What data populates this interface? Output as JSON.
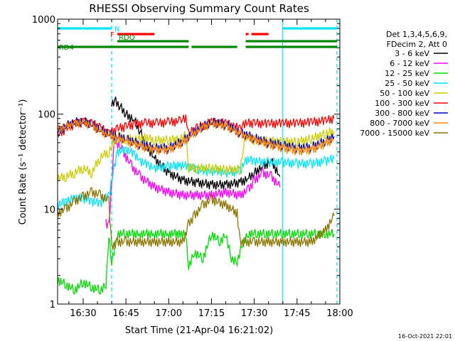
{
  "chart_data": {
    "type": "line",
    "title": "RHESSI Observing Summary Count Rates",
    "xlabel": "Start Time (21-Apr-04 16:21:02)",
    "ylabel": "Count Rate (s⁻¹ detector⁻¹)",
    "xlim": [
      "16:21:02",
      "18:00"
    ],
    "ylim": [
      1,
      1000
    ],
    "yscale": "log",
    "x_ticks": [
      "16:30",
      "16:45",
      "17:00",
      "17:15",
      "17:30",
      "17:45",
      "18:00"
    ],
    "y_ticks": [
      "1",
      "10",
      "100",
      "1000"
    ],
    "legend_header": [
      "Det 1,3,4,5,6,9,",
      "FDecim 2, Att 0"
    ],
    "legend_position": "right",
    "footer_date": "16-Oct-2021 22:01",
    "flags": [
      {
        "label": "N",
        "color": "#00e5ff",
        "segments": [
          [
            "16:21",
            "16:40"
          ],
          [
            "17:40",
            "17:59"
          ]
        ]
      },
      {
        "label": "F",
        "color": "#ff0000",
        "segments": [
          [
            "16:42",
            "16:55"
          ],
          [
            "17:27",
            "17:28"
          ],
          [
            "17:29",
            "17:35"
          ]
        ]
      },
      {
        "label": "RDO",
        "color": "#008800",
        "segments": [
          [
            "16:42",
            "17:07"
          ],
          [
            "17:27",
            "17:59"
          ]
        ]
      },
      {
        "label": "RD4",
        "color": "#008800",
        "segments": [
          [
            "16:21",
            "17:07"
          ],
          [
            "17:08",
            "17:24"
          ],
          [
            "17:27",
            "17:59"
          ]
        ]
      }
    ],
    "vlines": [
      {
        "t": "16:40",
        "color": "#00e5ff",
        "style": "dashed"
      },
      {
        "t": "17:40",
        "color": "#00e5ff",
        "style": "solid"
      },
      {
        "t": "17:59",
        "color": "#00e5ff",
        "style": "dashed"
      }
    ],
    "series": [
      {
        "name": "3 - 6 keV",
        "color": "#000000",
        "t": [
          "16:40",
          "16:41",
          "16:43",
          "16:45",
          "16:48",
          "16:50",
          "16:52",
          "16:55",
          "17:00",
          "17:05",
          "17:10",
          "17:15",
          "17:20",
          "17:25",
          "17:28",
          "17:30",
          "17:33",
          "17:36",
          "17:39"
        ],
        "values": [
          120,
          140,
          120,
          100,
          85,
          65,
          48,
          34,
          24,
          20,
          19,
          18,
          18,
          19,
          21,
          24,
          28,
          32,
          22
        ]
      },
      {
        "name": "6 - 12 keV",
        "color": "#ff00ff",
        "t": [
          "16:38",
          "16:39",
          "16:41",
          "16:44",
          "16:47",
          "16:50",
          "16:55",
          "17:00",
          "17:05",
          "17:10",
          "17:15",
          "17:20",
          "17:25",
          "17:28",
          "17:30",
          "17:33",
          "17:36",
          "17:39"
        ],
        "values": [
          7,
          6.5,
          55,
          40,
          28,
          22,
          17,
          15,
          14,
          14,
          14,
          15,
          14,
          16,
          20,
          24,
          22,
          17
        ]
      },
      {
        "name": "12 - 25 keV",
        "color": "#00dd00",
        "t": [
          "16:21",
          "16:24",
          "16:27",
          "16:30",
          "16:33",
          "16:36",
          "16:38",
          "16:39",
          "16:40",
          "16:42",
          "16:45",
          "16:50",
          "16:55",
          "17:00",
          "17:04",
          "17:06",
          "17:07",
          "17:09",
          "17:12",
          "17:15",
          "17:18",
          "17:20",
          "17:22",
          "17:24",
          "17:26",
          "17:28",
          "17:31",
          "17:34",
          "17:37",
          "17:40",
          "17:43",
          "17:46",
          "17:49",
          "17:52",
          "17:55",
          "17:58"
        ],
        "values": [
          1.8,
          1.6,
          1.4,
          1.7,
          1.5,
          1.4,
          1.6,
          5.5,
          2.8,
          5.5,
          5.5,
          5.5,
          5.5,
          5.5,
          5.5,
          5.5,
          2.5,
          3.5,
          3,
          5.5,
          4.5,
          5.5,
          3,
          2.8,
          4.5,
          5.5,
          5.5,
          5.5,
          5.5,
          5.5,
          5.5,
          5.5,
          5.5,
          5.5,
          5.5,
          5.5
        ]
      },
      {
        "name": "25 - 50 keV",
        "color": "#00e5ff",
        "t": [
          "16:21",
          "16:24",
          "16:27",
          "16:30",
          "16:33",
          "16:36",
          "16:39",
          "16:42",
          "16:45",
          "16:48",
          "16:50",
          "16:53",
          "16:55",
          "17:00",
          "17:04",
          "17:07",
          "17:10",
          "17:13",
          "17:15",
          "17:18",
          "17:20",
          "17:25",
          "17:27",
          "17:30",
          "17:35",
          "17:40",
          "17:45",
          "17:50",
          "17:55",
          "17:58"
        ],
        "values": [
          11,
          12,
          13,
          13,
          12,
          11.5,
          14,
          40,
          42,
          38,
          32,
          29,
          27,
          28,
          29,
          28,
          26,
          25,
          25,
          25,
          24,
          25,
          33,
          32,
          31,
          31,
          30,
          30,
          32,
          34
        ]
      },
      {
        "name": "50 - 100 keV",
        "color": "#cccc00",
        "t": [
          "16:21",
          "16:24",
          "16:27",
          "16:30",
          "16:33",
          "16:36",
          "16:39",
          "16:42",
          "16:45",
          "16:48",
          "16:50",
          "16:52",
          "16:55",
          "17:00",
          "17:04",
          "17:06",
          "17:07",
          "17:10",
          "17:15",
          "17:20",
          "17:25",
          "17:27",
          "17:30",
          "17:35",
          "17:40",
          "17:45",
          "17:50",
          "17:55",
          "17:58"
        ],
        "values": [
          21,
          22,
          24,
          27,
          24,
          35,
          40,
          58,
          55,
          54,
          55,
          56,
          53,
          53,
          55,
          60,
          27,
          27,
          27,
          26,
          26,
          58,
          54,
          52,
          51,
          51,
          55,
          62,
          66
        ]
      },
      {
        "name": "100 - 300 keV",
        "color": "#ff0000",
        "t": [
          "16:21",
          "16:24",
          "16:27",
          "16:30",
          "16:33",
          "16:36",
          "16:39",
          "16:42",
          "16:45",
          "16:48",
          "16:52",
          "16:56",
          "17:00",
          "17:04",
          "17:06",
          "17:07",
          "17:10",
          "17:15",
          "17:20",
          "17:25",
          "17:27",
          "17:30",
          "17:35",
          "17:40",
          "17:45",
          "17:50",
          "17:55",
          "17:58"
        ],
        "values": [
          60,
          70,
          78,
          82,
          80,
          72,
          62,
          70,
          74,
          78,
          80,
          80,
          82,
          84,
          90,
          62,
          72,
          82,
          80,
          70,
          80,
          80,
          79,
          80,
          80,
          82,
          85,
          90
        ]
      },
      {
        "name": "300 - 800 keV",
        "color": "#0000cc",
        "t": [
          "16:21",
          "16:24",
          "16:27",
          "16:30",
          "16:33",
          "16:36",
          "16:39",
          "16:42",
          "16:45",
          "16:50",
          "16:55",
          "17:00",
          "17:05",
          "17:08",
          "17:12",
          "17:15",
          "17:20",
          "17:25",
          "17:30",
          "17:35",
          "17:40",
          "17:45",
          "17:50",
          "17:55",
          "17:58"
        ],
        "values": [
          65,
          75,
          82,
          84,
          78,
          68,
          62,
          58,
          55,
          48,
          44,
          44,
          52,
          62,
          74,
          82,
          78,
          64,
          56,
          50,
          47,
          44,
          45,
          52,
          58
        ]
      },
      {
        "name": "800 - 7000 keV",
        "color": "#ff8800",
        "t": [
          "16:21",
          "16:24",
          "16:27",
          "16:30",
          "16:33",
          "16:36",
          "16:39",
          "16:42",
          "16:45",
          "16:50",
          "16:55",
          "17:00",
          "17:05",
          "17:08",
          "17:12",
          "17:15",
          "17:20",
          "17:25",
          "17:30",
          "17:35",
          "17:40",
          "17:45",
          "17:50",
          "17:55",
          "17:58"
        ],
        "values": [
          68,
          74,
          80,
          82,
          76,
          66,
          60,
          56,
          52,
          46,
          42,
          42,
          50,
          60,
          72,
          80,
          75,
          62,
          54,
          48,
          44,
          41,
          42,
          49,
          55
        ]
      },
      {
        "name": "7000 - 15000 keV",
        "color": "#8b7500",
        "t": [
          "16:21",
          "16:24",
          "16:27",
          "16:30",
          "16:33",
          "16:36",
          "16:39",
          "16:40",
          "16:42",
          "16:45",
          "16:50",
          "16:55",
          "17:00",
          "17:05",
          "17:07",
          "17:09",
          "17:12",
          "17:15",
          "17:20",
          "17:24",
          "17:25",
          "17:27",
          "17:30",
          "17:35",
          "17:40",
          "17:45",
          "17:50",
          "17:55",
          "17:58"
        ],
        "values": [
          9,
          10,
          12,
          13.5,
          15,
          14,
          12,
          4,
          4.5,
          4.5,
          4.5,
          4.5,
          4.5,
          4.5,
          7,
          8.5,
          11,
          12.5,
          11,
          9,
          4.5,
          4.5,
          4.5,
          4.5,
          4.5,
          4.5,
          4.5,
          6,
          8.5
        ]
      }
    ]
  }
}
